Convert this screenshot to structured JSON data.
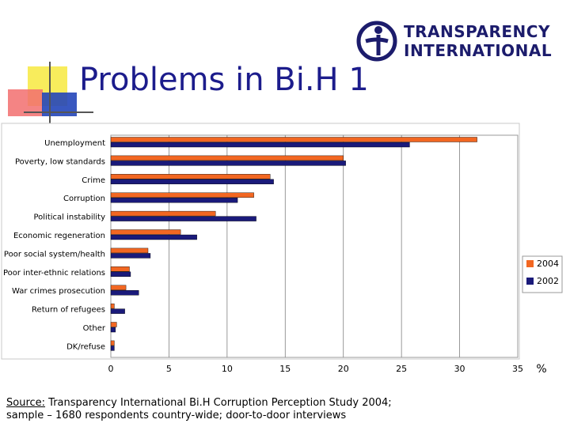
{
  "slide": {
    "title": "Problems in Bi.H 1",
    "logo": {
      "line1": "TRANSPARENCY",
      "line2": "INTERNATIONAL"
    },
    "source_label": "Source:",
    "source_rest": " Transparency International Bi.H Corruption Perception Study 2004;",
    "source_line2": "sample – 1680 respondents country-wide; door-to-door interviews"
  },
  "chart_data": {
    "type": "bar",
    "orientation": "horizontal",
    "categories": [
      "Unemployment",
      "Poverty, low standards",
      "Crime",
      "Corruption",
      "Political instability",
      "Economic regeneration",
      "Poor social system/health",
      "Poor inter-ethnic relations",
      "War crimes prosecution",
      "Return of refugees",
      "Other",
      "DK/refuse"
    ],
    "series": [
      {
        "name": "2004",
        "color": "#f26722",
        "values": [
          31.5,
          20,
          13.7,
          12.3,
          9,
          6,
          3.2,
          1.6,
          1.3,
          0.3,
          0.5,
          0.3
        ]
      },
      {
        "name": "2002",
        "color": "#1a1a7a",
        "values": [
          25.7,
          20.2,
          14,
          10.9,
          12.5,
          7.4,
          3.4,
          1.7,
          2.4,
          1.2,
          0.4,
          0.3
        ]
      }
    ],
    "xlim": [
      0,
      35
    ],
    "xticks": [
      "0",
      "5",
      "10",
      "15",
      "20",
      "25",
      "30",
      "35"
    ],
    "unit": "%",
    "grid": true,
    "legend_position": "right"
  }
}
